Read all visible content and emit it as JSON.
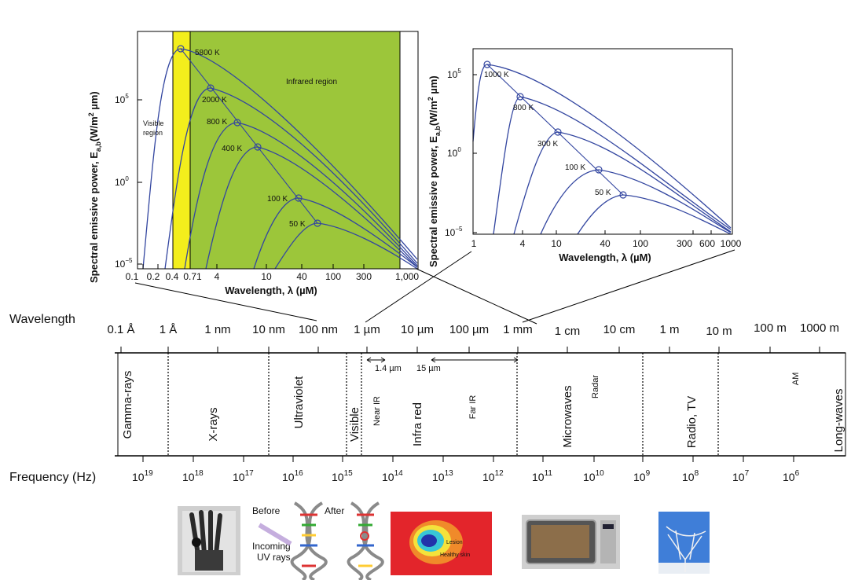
{
  "left_chart": {
    "ylabel": "Spectral emissive power, E",
    "ylabel_sub": "a,b",
    "ylabel_unit": "(W/m",
    "ylabel_unit_sup": "2",
    "ylabel_unit_end": " µm)",
    "xlabel": "Wavelength, λ (µM)",
    "xticks": [
      "0.1",
      "0.2",
      "0.4",
      "0.71",
      "4",
      "10",
      "40",
      "100",
      "300",
      "1,000"
    ],
    "yticks": [
      {
        "base": "10",
        "exp": "5"
      },
      {
        "base": "10",
        "exp": "0"
      },
      {
        "base": "10",
        "exp": "−5"
      }
    ],
    "region_visible": [
      "Visible",
      "region"
    ],
    "region_infrared": "Infrared region",
    "curve_labels": [
      "5800 K",
      "2000 K",
      "800 K",
      "400 K",
      "100 K",
      "50 K"
    ],
    "colors": {
      "infrared": "#9cc63a",
      "visible": "#f3ee1c",
      "curve": "#3346a0"
    }
  },
  "right_chart": {
    "ylabel": "Spectral emissive power, E",
    "ylabel_sub": "a,b",
    "ylabel_unit": "(W/m",
    "ylabel_unit_sup": "2",
    "ylabel_unit_end": " µm)",
    "xlabel": "Wavelength, λ (µM)",
    "xticks": [
      "1",
      "4",
      "10",
      "40",
      "100",
      "300",
      "600",
      "1000"
    ],
    "yticks": [
      {
        "base": "10",
        "exp": "5"
      },
      {
        "base": "10",
        "exp": "0"
      },
      {
        "base": "10",
        "exp": "−5"
      }
    ],
    "curve_labels": [
      "1000 K",
      "800 K",
      "300 K",
      "100 K",
      "50 K"
    ]
  },
  "spectrum": {
    "wavelength_label": "Wavelength",
    "frequency_label": "Frequency (Hz)",
    "wavelength_ticks": [
      "0.1 Å",
      "1 Å",
      "1 nm",
      "10 nm",
      "100 nm",
      "1 µm",
      "10 µm",
      "100 µm",
      "1 mm",
      "1 cm",
      "10 cm",
      "1 m",
      "10 m",
      "100 m",
      "1000 m"
    ],
    "bands": [
      "Gamma-rays",
      "X-rays",
      "Ultraviolet",
      "Visible",
      "Infra red",
      "Microwaves",
      "Radio, TV",
      "Long-waves"
    ],
    "sub_labels": [
      "Near IR",
      "Far IR",
      "Radar",
      "AM"
    ],
    "ir_ranges": [
      "1.4 µm",
      "15 µm"
    ],
    "frequency_ticks": [
      {
        "base": "10",
        "exp": "19"
      },
      {
        "base": "10",
        "exp": "18"
      },
      {
        "base": "10",
        "exp": "17"
      },
      {
        "base": "10",
        "exp": "16"
      },
      {
        "base": "10",
        "exp": "15"
      },
      {
        "base": "10",
        "exp": "14"
      },
      {
        "base": "10",
        "exp": "13"
      },
      {
        "base": "10",
        "exp": "12"
      },
      {
        "base": "10",
        "exp": "11"
      },
      {
        "base": "10",
        "exp": "10"
      },
      {
        "base": "10",
        "exp": "9"
      },
      {
        "base": "10",
        "exp": "8"
      },
      {
        "base": "10",
        "exp": "7"
      },
      {
        "base": "10",
        "exp": "6"
      }
    ]
  },
  "photos": {
    "dna_before": "Before",
    "dna_after": "After",
    "dna_incoming": [
      "Incoming",
      "UV rays"
    ],
    "thermal_labels": [
      "Lesion",
      "Healthy skin"
    ]
  }
}
